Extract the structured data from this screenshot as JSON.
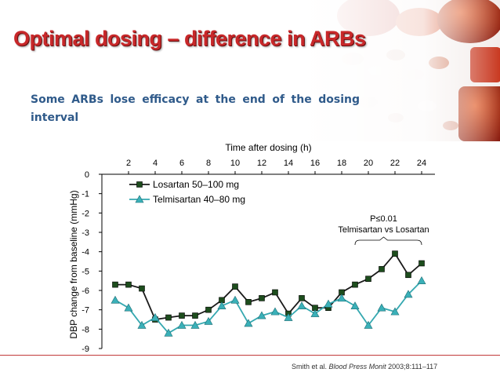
{
  "slide": {
    "title": "Optimal dosing – difference in ARBs",
    "subtitle": "Some ARBs lose efficacy at the end of the dosing interval",
    "citation": {
      "authors": "Smith et al.",
      "journal": "Blood Press Monit",
      "ref": "2003;8:111–117"
    },
    "colors": {
      "title": "#c8282a",
      "subtitle": "#2f5a8a",
      "rule": "#c23a3a"
    }
  },
  "chart_data": {
    "type": "line",
    "xlabel": "Time after dosing (h)",
    "ylabel": "DBP change from baseline (mmHg)",
    "x_ticks": [
      2,
      4,
      6,
      8,
      10,
      12,
      14,
      16,
      18,
      20,
      22,
      24
    ],
    "y_ticks": [
      0,
      -1,
      -2,
      -3,
      -4,
      -5,
      -6,
      -7,
      -8,
      -9
    ],
    "xlim": [
      0,
      25
    ],
    "ylim": [
      -9,
      0
    ],
    "x_axis_position": "top",
    "annotation": {
      "line1": "P≤0.01",
      "line2": "Telmisartan vs Losartan",
      "x_range": [
        19,
        24
      ]
    },
    "legend_position": "top-left",
    "grid": false,
    "series": [
      {
        "name": "Losartan 50–100 mg",
        "marker": "square",
        "line_color": "#1a1a1a",
        "marker_color": "#1d4d1d",
        "x": [
          1,
          2,
          3,
          4,
          5,
          6,
          7,
          8,
          9,
          10,
          11,
          12,
          13,
          14,
          15,
          16,
          17,
          18,
          19,
          20,
          21,
          22,
          23,
          24
        ],
        "values": [
          -5.7,
          -5.7,
          -5.9,
          -7.5,
          -7.4,
          -7.3,
          -7.3,
          -7.0,
          -6.5,
          -5.8,
          -6.6,
          -6.4,
          -6.1,
          -7.2,
          -6.4,
          -6.9,
          -6.9,
          -6.1,
          -5.7,
          -5.4,
          -4.9,
          -4.1,
          -5.2,
          -4.6
        ]
      },
      {
        "name": "Telmisartan 40–80 mg",
        "marker": "triangle",
        "line_color": "#35a8b0",
        "marker_color": "#3ab0b8",
        "x": [
          1,
          2,
          3,
          4,
          5,
          6,
          7,
          8,
          9,
          10,
          11,
          12,
          13,
          14,
          15,
          16,
          17,
          18,
          19,
          20,
          21,
          22,
          23,
          24
        ],
        "values": [
          -6.5,
          -6.9,
          -7.8,
          -7.4,
          -8.2,
          -7.8,
          -7.8,
          -7.6,
          -6.8,
          -6.5,
          -7.7,
          -7.3,
          -7.1,
          -7.4,
          -6.8,
          -7.2,
          -6.7,
          -6.4,
          -6.8,
          -7.8,
          -6.9,
          -7.1,
          -6.2,
          -5.5
        ]
      }
    ]
  }
}
